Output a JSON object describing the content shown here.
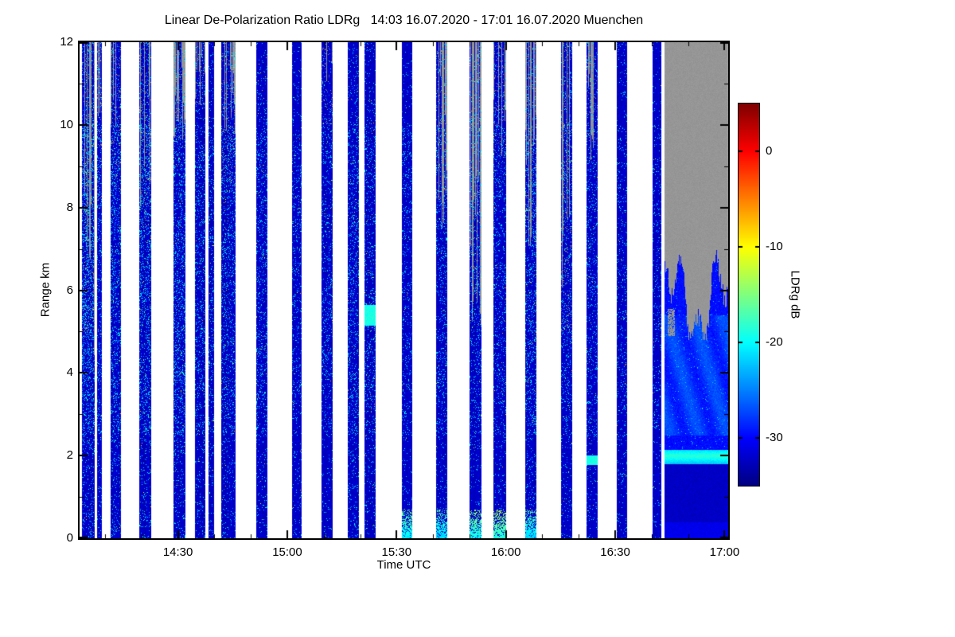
{
  "chart_data": {
    "type": "heatmap",
    "title": "Linear De-Polarization Ratio LDRg   14:03 16.07.2020 - 17:01 16.07.2020 Muenchen",
    "xlabel": "Time UTC",
    "ylabel": "Range km",
    "x_start_label": "14:03",
    "x_end_label": "17:01",
    "x_total_minutes": 178,
    "x_ticks": [
      {
        "label": "14:30",
        "minute": 27
      },
      {
        "label": "15:00",
        "minute": 57
      },
      {
        "label": "15:30",
        "minute": 87
      },
      {
        "label": "16:00",
        "minute": 117
      },
      {
        "label": "16:30",
        "minute": 147
      },
      {
        "label": "17:00",
        "minute": 177
      }
    ],
    "x_minor_every_minutes": 10,
    "x_minor_start_minute": 7,
    "y_ticks": [
      0,
      2,
      4,
      6,
      8,
      10,
      12
    ],
    "y_range_km": [
      0,
      12
    ],
    "grid": false,
    "colorbar": {
      "label": "LDRg dB",
      "ticks": [
        0,
        -10,
        -20,
        -30
      ],
      "vmin": -35,
      "vmax": 5,
      "colormap": "jet"
    },
    "no_data_color": "#969696",
    "background_color": "#ffffff",
    "typical_signal_db": -33,
    "speckle_signal_db_range": [
      -25,
      -16
    ],
    "stripes": [
      {
        "t0": 0.7,
        "t1": 4.2,
        "speckle": 0.2,
        "gray": {
          "from": 6.0,
          "cover": 0.5,
          "jitter": 2.5
        }
      },
      {
        "t0": 4.9,
        "t1": 6.2,
        "speckle": 0.12,
        "gray": {
          "from": 9.0,
          "cover": 0.25,
          "jitter": 2.0
        }
      },
      {
        "t0": 8.6,
        "t1": 11.4,
        "speckle": 0.16,
        "gray": {
          "from": 9.5,
          "cover": 0.35,
          "jitter": 2.5
        }
      },
      {
        "t0": 16.4,
        "t1": 19.7,
        "speckle": 0.16,
        "gray": {
          "from": 8.5,
          "cover": 0.45,
          "jitter": 3.0
        }
      },
      {
        "t0": 25.8,
        "t1": 29.0,
        "speckle": 0.16,
        "gray": {
          "from": 10.6,
          "cover": 0.85,
          "jitter": 1.2
        }
      },
      {
        "t0": 31.7,
        "t1": 34.5,
        "speckle": 0.13,
        "gray": {
          "from": 11.4,
          "cover": 0.3,
          "jitter": 1.0
        }
      },
      {
        "t0": 35.4,
        "t1": 36.9,
        "speckle": 0.11
      },
      {
        "t0": 38.9,
        "t1": 42.8,
        "speckle": 0.13,
        "gray": {
          "from": 9.6,
          "cover": 0.6,
          "jitter": 2.0,
          "side": "right"
        }
      },
      {
        "t0": 48.5,
        "t1": 51.5,
        "speckle": 0.11
      },
      {
        "t0": 58.3,
        "t1": 60.9,
        "speckle": 0.09
      },
      {
        "t0": 66.4,
        "t1": 69.4,
        "speckle": 0.1,
        "gray": {
          "from": 11.0,
          "cover": 0.35,
          "jitter": 1.5
        }
      },
      {
        "t0": 73.6,
        "t1": 76.6,
        "speckle": 0.13
      },
      {
        "t0": 78.2,
        "t1": 81.2,
        "speckle": 0.11,
        "layers": [
          {
            "km": 5.4,
            "db": -20,
            "w": 0.25
          }
        ]
      },
      {
        "t0": 88.4,
        "t1": 91.3,
        "speckle": 0.09,
        "bottom": -21
      },
      {
        "t0": 97.8,
        "t1": 100.9,
        "speckle": 0.11,
        "gray": {
          "from": 9.2,
          "cover": 0.5,
          "jitter": 2.0,
          "side": "right"
        },
        "bottom": -22
      },
      {
        "t0": 107.0,
        "t1": 110.2,
        "speckle": 0.1,
        "gray": {
          "from": 6.8,
          "cover": 0.8,
          "jitter": 2.5
        },
        "bottom": -20
      },
      {
        "t0": 113.5,
        "t1": 117.0,
        "speckle": 0.11,
        "gray": {
          "from": 10.2,
          "cover": 0.35,
          "jitter": 1.5
        },
        "bottom": -19
      },
      {
        "t0": 122.3,
        "t1": 125.3,
        "speckle": 0.15,
        "gray": {
          "from": 8.6,
          "cover": 0.5,
          "jitter": 2.0
        },
        "bottom": -22
      },
      {
        "t0": 132.1,
        "t1": 135.2,
        "speckle": 0.11,
        "gray": {
          "from": 6.0,
          "cover": 0.35,
          "jitter": 3.0,
          "side": "left"
        }
      },
      {
        "t0": 139.1,
        "t1": 142.1,
        "speckle": 0.1,
        "gray": {
          "from": 10.6,
          "cover": 0.25,
          "jitter": 1.5,
          "side": "left"
        },
        "layers": [
          {
            "km": 1.9,
            "db": -20,
            "w": 0.12
          }
        ]
      },
      {
        "t0": 147.4,
        "t1": 150.2,
        "speckle": 0.08
      },
      {
        "t0": 157.2,
        "t1": 159.6,
        "speckle": 0.07
      },
      {
        "t0": 160.5,
        "t1": 177.9,
        "final": true,
        "speckle": 0.05,
        "cloud_top_km_range": [
          4.8,
          7.1
        ],
        "bright_line": {
          "km": 2.0,
          "db": -19
        },
        "dark_below_km": 1.8
      }
    ]
  }
}
